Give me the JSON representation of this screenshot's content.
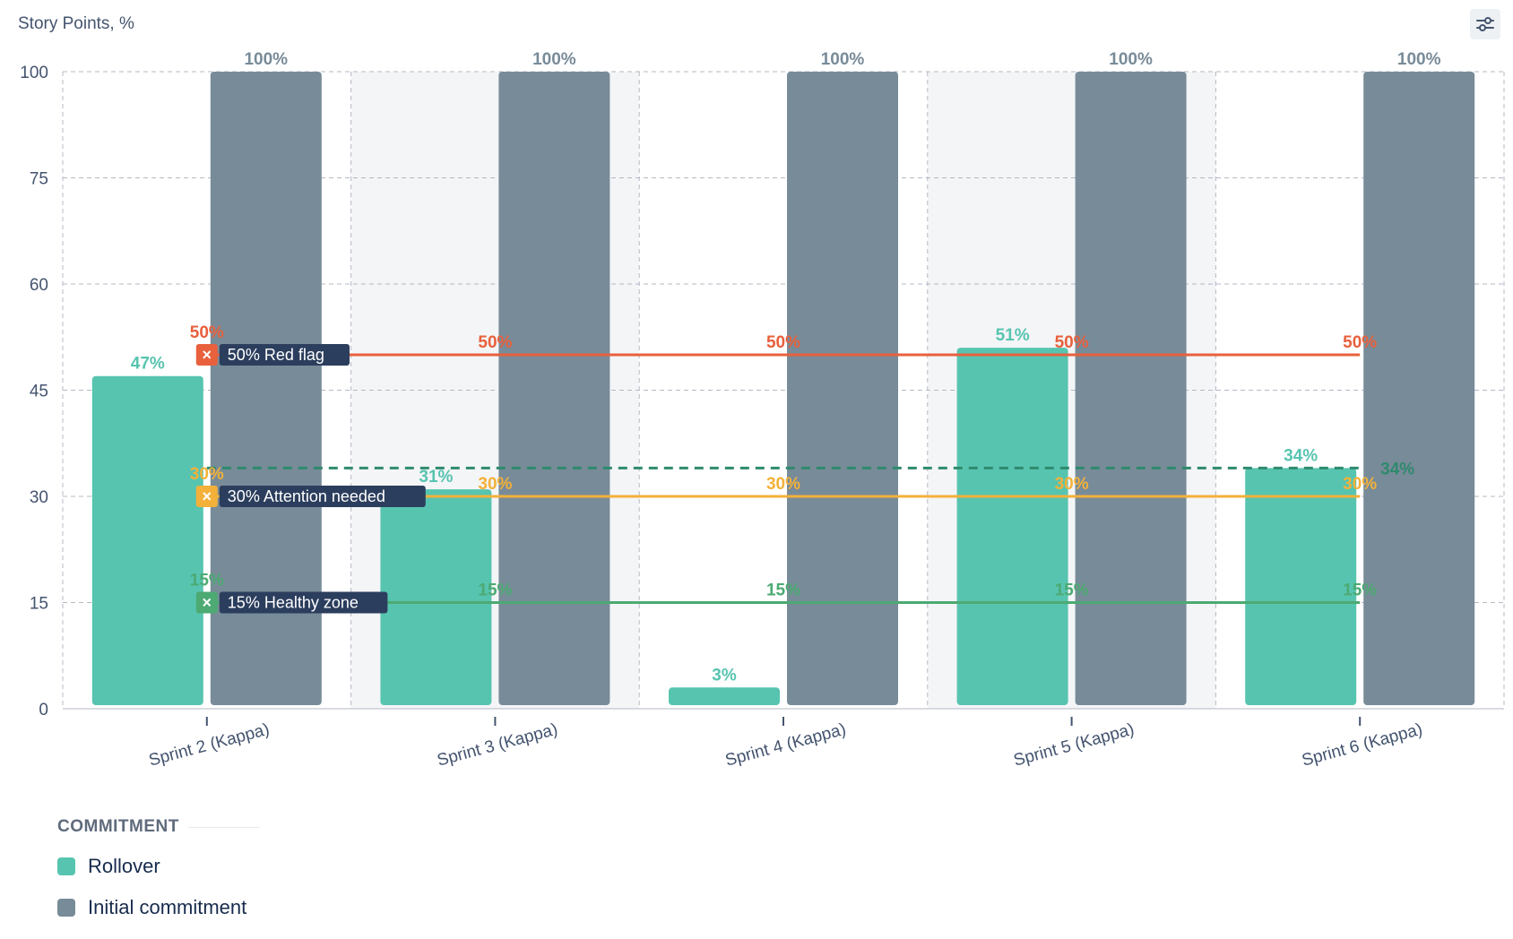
{
  "chart_data": {
    "type": "bar",
    "title": "",
    "ylabel": "Story Points, %",
    "xlabel": "",
    "y_ticks": [
      0,
      15,
      30,
      45,
      60,
      75,
      100
    ],
    "ylim": [
      0,
      100
    ],
    "categories": [
      "Sprint 2 (Kappa)",
      "Sprint 3 (Kappa)",
      "Sprint 4 (Kappa)",
      "Sprint 5 (Kappa)",
      "Sprint 6 (Kappa)"
    ],
    "series": [
      {
        "name": "Rollover",
        "values": [
          47,
          31,
          3,
          51,
          34
        ],
        "labels": [
          "47%",
          "31%",
          "3%",
          "51%",
          "34%"
        ],
        "color": "#57c4b0"
      },
      {
        "name": "Initial commitment",
        "values": [
          100,
          100,
          100,
          100,
          100
        ],
        "labels": [
          "100%",
          "100%",
          "100%",
          "100%",
          "100%"
        ],
        "color": "#788b98"
      }
    ],
    "threshold_lines": [
      {
        "value": 50,
        "label": "50% Red flag",
        "point_label": "50%",
        "color": "#e8603c"
      },
      {
        "value": 30,
        "label": "30% Attention needed",
        "point_label": "30%",
        "color": "#f3b13a"
      },
      {
        "value": 15,
        "label": "15% Healthy zone",
        "point_label": "15%",
        "color": "#4caa72"
      }
    ],
    "average_line": {
      "value": 34,
      "label": "34%",
      "color": "#2f8a6e",
      "style": "dashed"
    },
    "grid": true,
    "legend": {
      "position": "bottom-left",
      "title": "COMMITMENT"
    }
  },
  "ui": {
    "settings_icon": "sliders-icon"
  }
}
